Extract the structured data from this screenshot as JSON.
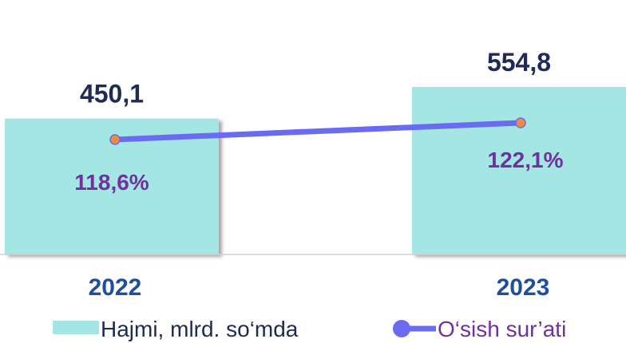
{
  "chart_data": {
    "type": "bar",
    "categories": [
      "2022",
      "2023"
    ],
    "series": [
      {
        "name": "Hajmi, mlrd. so‘mda",
        "type": "bar",
        "values": [
          450.1,
          554.8
        ],
        "value_labels": [
          "450,1",
          "554,8"
        ],
        "color": "#a3e6e3"
      },
      {
        "name": "O‘sish sur’ati",
        "type": "line",
        "values": [
          118.6,
          122.1
        ],
        "value_labels": [
          "118,6%",
          "122,1%"
        ],
        "color": "#6b6bf2",
        "marker_color": "#f08a3c"
      }
    ],
    "legend_position": "bottom",
    "grid": false
  },
  "colors": {
    "value_text": "#1f2a55",
    "rate_text": "#7030a0",
    "category_text": "#1f4e9c",
    "legend_bar_text": "#1f2a55",
    "legend_line_text": "#7030a0"
  }
}
